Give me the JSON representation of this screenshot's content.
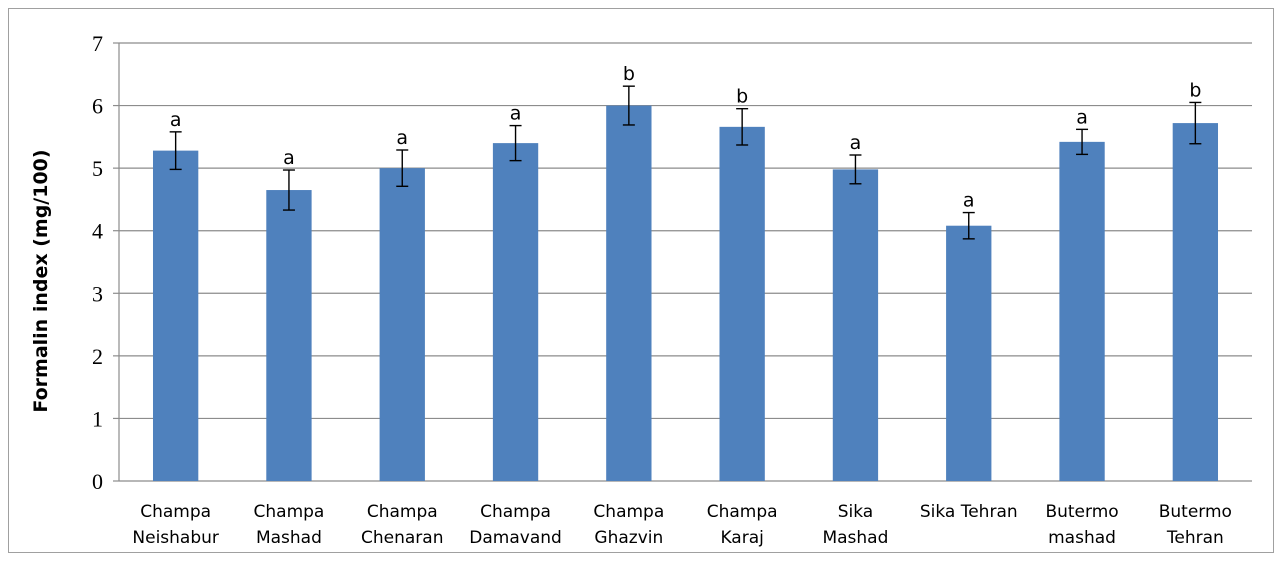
{
  "chart_data": {
    "type": "bar",
    "title": "",
    "xlabel": "",
    "ylabel": "Formalin index (mg/100)",
    "ylim": [
      0,
      7
    ],
    "yticks": [
      0,
      1,
      2,
      3,
      4,
      5,
      6,
      7
    ],
    "grid": true,
    "legend": "none",
    "bar_color": "#4f81bd",
    "categories": [
      [
        "Champa",
        "Neishabur"
      ],
      [
        "Champa",
        "Mashad"
      ],
      [
        "Champa",
        "Chenaran"
      ],
      [
        "Champa",
        "Damavand"
      ],
      [
        "Champa",
        "Ghazvin"
      ],
      [
        "Champa",
        "Karaj"
      ],
      [
        "Sika",
        "Mashad"
      ],
      [
        "Sika Tehran"
      ],
      [
        "Butermo",
        "mashad"
      ],
      [
        "Butermo",
        "Tehran"
      ]
    ],
    "values": [
      5.28,
      4.65,
      5.0,
      5.4,
      6.0,
      5.66,
      4.98,
      4.08,
      5.42,
      5.72
    ],
    "error": [
      0.3,
      0.32,
      0.29,
      0.28,
      0.31,
      0.29,
      0.23,
      0.21,
      0.2,
      0.33
    ],
    "significance_labels": [
      "a",
      "a",
      "a",
      "a",
      "b",
      "b",
      "a",
      "a",
      "a",
      "b"
    ]
  }
}
